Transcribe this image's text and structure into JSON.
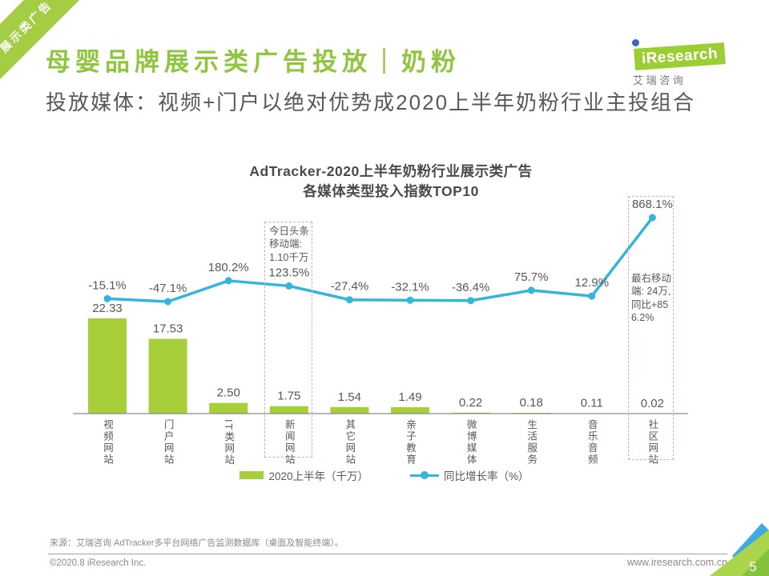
{
  "ribbon": {
    "label": "展示类广告"
  },
  "header": {
    "title": "母婴品牌展示类广告投放｜奶粉",
    "subtitle": "投放媒体：视频+门户以绝对优势成2020上半年奶粉行业主投组合"
  },
  "logo": {
    "brand": "iResearch",
    "caption": "艾瑞咨询",
    "caption_spaced": "艾 瑞 咨 询"
  },
  "chart_data": {
    "type": "bar",
    "title": "AdTracker-2020上半年奶粉行业展示类广告\n各媒体类型投入指数TOP10",
    "categories": [
      "视频网站",
      "门户网站",
      "IT类网站",
      "新闻网站",
      "其它网站",
      "亲子教育",
      "微博媒体",
      "生活服务",
      "音乐音频",
      "社区网站"
    ],
    "series": [
      {
        "name": "2020上半年（千万）",
        "type": "bar",
        "color": "#a6cf39",
        "values": [
          22.33,
          17.53,
          2.5,
          1.75,
          1.54,
          1.49,
          0.22,
          0.18,
          0.11,
          0.02
        ],
        "labels": [
          "22.33",
          "17.53",
          "2.50",
          "1.75",
          "1.54",
          "1.49",
          "0.22",
          "0.18",
          "0.11",
          "0.02"
        ]
      },
      {
        "name": "同比增长率（%）",
        "type": "line",
        "color": "#35b5db",
        "values": [
          -15.1,
          -47.1,
          180.2,
          123.5,
          -27.4,
          -32.1,
          -36.4,
          75.7,
          12.9,
          868.1
        ],
        "labels": [
          "-15.1%",
          "-47.1%",
          "180.2%",
          "123.5%",
          "-27.4%",
          "-32.1%",
          "-36.4%",
          "75.7%",
          "12.9%",
          "868.1%"
        ]
      }
    ],
    "annotations": [
      {
        "target": "新闻网站",
        "text": "今日头条\n移动端:\n1.10千万"
      },
      {
        "target": "社区网站",
        "text": "最右移动端: 24万, 同比+856.2%"
      }
    ],
    "grid": false,
    "legend_position": "bottom"
  },
  "footer": {
    "source": "来源：艾瑞咨询 AdTracker多平台网络广告监测数据库（桌面及智能终端）。",
    "copyright": "©2020.8 iResearch Inc.",
    "website": "www.iresearch.com.cn",
    "page_number": "5"
  },
  "colors": {
    "brand_green": "#8fc63e",
    "bar_green": "#a6cf39",
    "ribbon_green": "#a4cd43",
    "logo_green": "#9ccd32",
    "logo_dot_blue": "#3e68b1",
    "line_cyan": "#35b5db",
    "annotation_pink": "#e2a9a9",
    "corner_blue": "#3fa9e1",
    "corner_green_light": "#a9d44c",
    "corner_green_dark": "#84c13c",
    "text_dark": "#595757"
  }
}
